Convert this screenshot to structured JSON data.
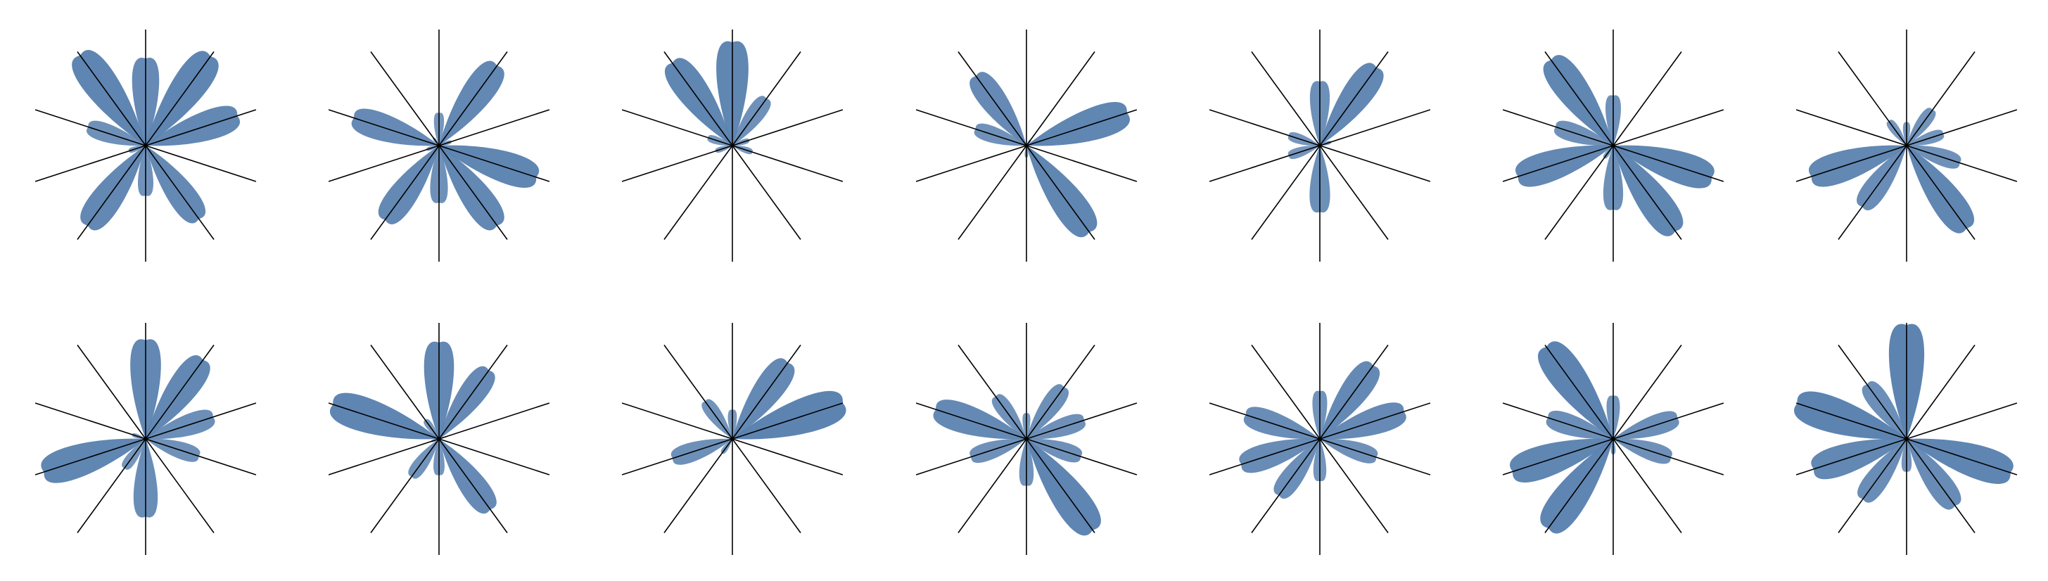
{
  "chart_data": {
    "type": "radar-petal-grid",
    "rows": 2,
    "cols": 7,
    "axis_count": 10,
    "petal_color": "#4f79aa",
    "axis_color": "#000000",
    "panels": [
      [
        0.75,
        0.95,
        0.83,
        0.0,
        0.78,
        0.43,
        0.85,
        0.15,
        0.52,
        0.96
      ],
      [
        0.28,
        0.85,
        0.11,
        0.88,
        0.85,
        0.49,
        0.79,
        0.11,
        0.77,
        0.08
      ],
      [
        0.89,
        0.5,
        0.15,
        0.18,
        0.0,
        0.0,
        0.0,
        0.15,
        0.22,
        0.88
      ],
      [
        0.0,
        0.06,
        0.91,
        0.0,
        0.92,
        0.1,
        0.0,
        0.0,
        0.46,
        0.74
      ],
      [
        0.55,
        0.83,
        0.1,
        0.0,
        0.0,
        0.57,
        0.0,
        0.28,
        0.28,
        0.0
      ],
      [
        0.43,
        0.0,
        0.0,
        0.89,
        0.91,
        0.55,
        0.13,
        0.86,
        0.52,
        0.91
      ],
      [
        0.2,
        0.38,
        0.33,
        0.48,
        0.88,
        0.0,
        0.65,
        0.86,
        0.0,
        0.26
      ],
      [
        0.85,
        0.84,
        0.61,
        0.48,
        0.0,
        0.67,
        0.31,
        0.92,
        0.12,
        0.0
      ],
      [
        0.83,
        0.73,
        0.04,
        0.0,
        0.75,
        0.31,
        0.4,
        0.07,
        0.96,
        0.2
      ],
      [
        0.25,
        0.81,
        1.0,
        0.0,
        0.0,
        0.0,
        0.15,
        0.54,
        0.0,
        0.4
      ],
      [
        0.22,
        0.55,
        0.52,
        0.49,
        0.97,
        0.4,
        0.0,
        0.5,
        0.82,
        0.45
      ],
      [
        0.41,
        0.78,
        0.76,
        0.51,
        0.0,
        0.36,
        0.6,
        0.71,
        0.67,
        0.0
      ],
      [
        0.37,
        0.0,
        0.58,
        0.52,
        0.0,
        0.13,
        0.95,
        0.91,
        0.59,
        0.98
      ],
      [
        0.98,
        0.0,
        0.0,
        0.94,
        0.71,
        0.28,
        0.64,
        0.84,
        0.99,
        0.58
      ]
    ]
  }
}
